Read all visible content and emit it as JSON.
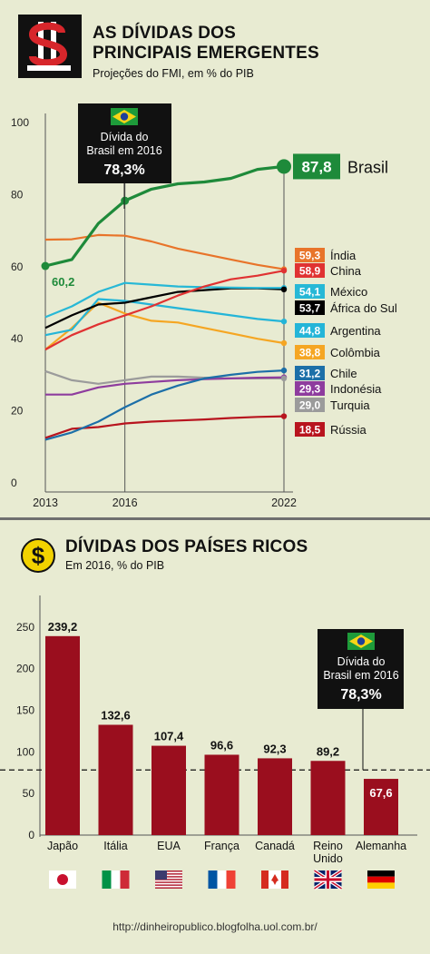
{
  "header1": {
    "title_line1": "AS DÍVIDAS DOS",
    "title_line2": "PRINCIPAIS EMERGENTES",
    "subtitle": "Projeções do FMI, em % do PIB"
  },
  "header2": {
    "title": "DÍVIDAS DOS PAÍSES RICOS",
    "subtitle": "Em 2016, % do PIB"
  },
  "callout1": {
    "line1": "Dívida do",
    "line2": "Brasil em 2016",
    "value": "78,3%"
  },
  "callout2": {
    "line1": "Dívida do",
    "line2": "Brasil em 2016",
    "value": "78,3%"
  },
  "brasil_start_label": "60,2",
  "footer": "http://dinheiropublico.blogfolha.uol.com.br/",
  "chart_data": [
    {
      "type": "line",
      "ylim": [
        0,
        100
      ],
      "yticks": [
        "0",
        "20",
        "40",
        "60",
        "80",
        "100"
      ],
      "xticks": [
        "2013",
        "2016",
        "2022"
      ],
      "x": [
        2013,
        2014,
        2015,
        2016,
        2017,
        2018,
        2019,
        2020,
        2021,
        2022
      ],
      "series": [
        {
          "name": "Brasil",
          "label": "87,8",
          "color": "#1e8a3a",
          "values": [
            60.2,
            62.0,
            72.0,
            78.3,
            81.5,
            83.0,
            83.5,
            84.5,
            87.0,
            87.8
          ]
        },
        {
          "name": "Índia",
          "label": "59,3",
          "color": "#e8742a",
          "values": [
            67.5,
            67.6,
            68.8,
            68.6,
            67.0,
            65.0,
            63.5,
            62.0,
            60.5,
            59.3
          ]
        },
        {
          "name": "China",
          "label": "58,9",
          "color": "#e03232",
          "values": [
            37.0,
            41.0,
            44.0,
            46.5,
            49.0,
            52.0,
            54.5,
            56.5,
            57.5,
            58.9
          ]
        },
        {
          "name": "México",
          "label": "54,1",
          "color": "#27b8d6",
          "values": [
            46.0,
            49.0,
            53.0,
            55.5,
            55.0,
            54.5,
            54.3,
            54.2,
            54.1,
            54.1
          ]
        },
        {
          "name": "África do Sul",
          "label": "53,7",
          "color": "#000000",
          "values": [
            43.0,
            46.5,
            49.5,
            50.0,
            51.5,
            53.0,
            53.5,
            54.0,
            54.0,
            53.7
          ]
        },
        {
          "name": "Argentina",
          "label": "44,8",
          "color": "#24b5d8",
          "values": [
            41.0,
            42.5,
            51.0,
            50.5,
            49.5,
            48.5,
            47.5,
            46.5,
            45.5,
            44.8
          ]
        },
        {
          "name": "Colômbia",
          "label": "38,8",
          "color": "#f5a623",
          "values": [
            37.0,
            43.0,
            50.0,
            47.0,
            45.0,
            44.5,
            43.0,
            41.5,
            40.0,
            38.8
          ]
        },
        {
          "name": "Chile",
          "label": "31,2",
          "color": "#1c6fa8",
          "values": [
            12.0,
            14.0,
            17.0,
            21.0,
            24.5,
            27.0,
            29.0,
            30.0,
            30.8,
            31.2
          ]
        },
        {
          "name": "Indonésia",
          "label": "29,3",
          "color": "#8e3c9e",
          "values": [
            24.5,
            24.5,
            26.5,
            27.5,
            28.0,
            28.5,
            28.8,
            29.0,
            29.2,
            29.3
          ]
        },
        {
          "name": "Turquia",
          "label": "29,0",
          "color": "#9b9b9b",
          "values": [
            31.0,
            28.5,
            27.5,
            28.5,
            29.5,
            29.5,
            29.2,
            29.0,
            29.0,
            29.0
          ]
        },
        {
          "name": "Rússia",
          "label": "18,5",
          "color": "#b8141e",
          "values": [
            12.5,
            15.0,
            15.5,
            16.5,
            17.0,
            17.3,
            17.6,
            18.0,
            18.3,
            18.5
          ]
        }
      ]
    },
    {
      "type": "bar",
      "ylim": [
        0,
        275
      ],
      "yticks": [
        "0",
        "50",
        "100",
        "150",
        "200",
        "250"
      ],
      "reference_value": 78.3,
      "bar_color": "#9a0e1e",
      "categories": [
        {
          "label1": "Japão",
          "label2": "",
          "value": 239.2,
          "value_label": "239,2",
          "flag": "japan-flag-icon"
        },
        {
          "label1": "Itália",
          "label2": "",
          "value": 132.6,
          "value_label": "132,6",
          "flag": "italy-flag-icon"
        },
        {
          "label1": "EUA",
          "label2": "",
          "value": 107.4,
          "value_label": "107,4",
          "flag": "usa-flag-icon"
        },
        {
          "label1": "França",
          "label2": "",
          "value": 96.6,
          "value_label": "96,6",
          "flag": "france-flag-icon"
        },
        {
          "label1": "Canadá",
          "label2": "",
          "value": 92.3,
          "value_label": "92,3",
          "flag": "canada-flag-icon"
        },
        {
          "label1": "Reino",
          "label2": "Unido",
          "value": 89.2,
          "value_label": "89,2",
          "flag": "uk-flag-icon"
        },
        {
          "label1": "Alemanha",
          "label2": "",
          "value": 67.6,
          "value_label": "67,6",
          "flag": "germany-flag-icon"
        }
      ]
    }
  ]
}
